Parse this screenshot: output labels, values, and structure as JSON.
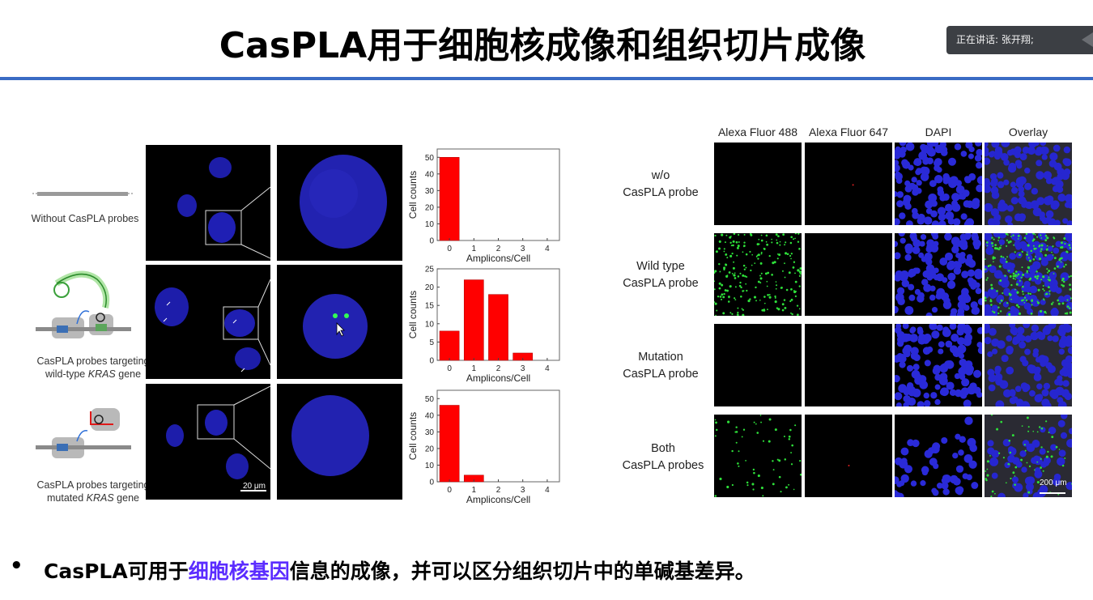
{
  "slide": {
    "title": "CasPLA用于细胞核成像和组织切片成像",
    "speaker": "正在讲话: 张开翔;",
    "bullet": {
      "prefix": "CasPLA可用于",
      "highlight": "细胞核基因",
      "suffix": "信息的成像，并可以区分组织切片中的单碱基差异。",
      "highlight_color": "#5b2cff"
    }
  },
  "left_figure": {
    "rows": [
      {
        "label_lines": [
          "Without CasPLA probes"
        ]
      },
      {
        "label_lines": [
          "CasPLA probes targeting",
          "wild-type ",
          "KRAS",
          " gene"
        ]
      },
      {
        "label_lines": [
          "CasPLA probes targeting",
          "mutated ",
          "KRAS",
          " gene"
        ]
      }
    ],
    "scalebar": "20 μm"
  },
  "chart_data": [
    {
      "type": "bar",
      "categories": [
        "0",
        "1",
        "2",
        "3",
        "4"
      ],
      "values": [
        50,
        0,
        0,
        0,
        0
      ],
      "xlabel": "Amplicons/Cell",
      "ylabel": "Cell counts",
      "ylim": [
        0,
        55
      ],
      "yticks": [
        0,
        10,
        20,
        30,
        40,
        50
      ],
      "color": "#ff0000"
    },
    {
      "type": "bar",
      "categories": [
        "0",
        "1",
        "2",
        "3",
        "4"
      ],
      "values": [
        8,
        22,
        18,
        2,
        0
      ],
      "xlabel": "Amplicons/Cell",
      "ylabel": "Cell counts",
      "ylim": [
        0,
        25
      ],
      "yticks": [
        0,
        5,
        10,
        15,
        20,
        25
      ],
      "color": "#ff0000"
    },
    {
      "type": "bar",
      "categories": [
        "0",
        "1",
        "2",
        "3",
        "4"
      ],
      "values": [
        46,
        4,
        0,
        0,
        0
      ],
      "xlabel": "Amplicons/Cell",
      "ylabel": "Cell counts",
      "ylim": [
        0,
        55
      ],
      "yticks": [
        0,
        10,
        20,
        30,
        40,
        50
      ],
      "color": "#ff0000"
    }
  ],
  "right_figure": {
    "columns": [
      "Alexa Fluor 488",
      "Alexa Fluor 647",
      "DAPI",
      "Overlay"
    ],
    "rows": [
      [
        "w/o",
        "CasPLA probe"
      ],
      [
        "Wild type",
        "CasPLA probe"
      ],
      [
        "Mutation",
        "CasPLA probe"
      ],
      [
        "Both",
        "CasPLA probes"
      ]
    ],
    "scalebar": "200 μm"
  }
}
